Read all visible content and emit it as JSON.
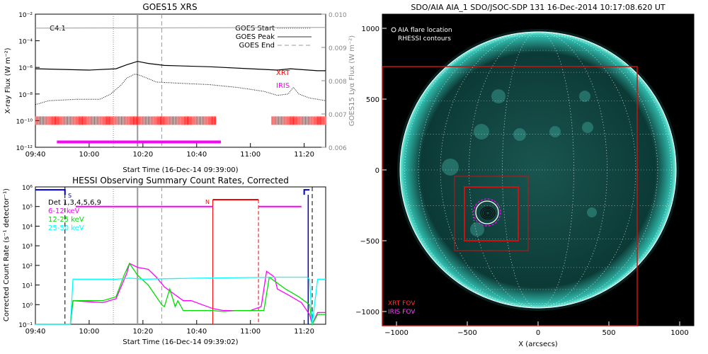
{
  "colors": {
    "xrt": "#ff0000",
    "iris": "#ff00ff",
    "green": "#00dd00",
    "cyan": "#00ffff",
    "blue": "#0000cc",
    "gray": "#999999",
    "sun": "#0c3a36"
  },
  "chart_data": [
    {
      "type": "line",
      "title": "GOES15 XRS",
      "xlabel": "Start Time (16-Dec-14 09:39:00)",
      "ylabel": "X-ray Flux (W m⁻²)",
      "ylabel_right": "GOES15 Lyα Flux (W m⁻²)",
      "x_ticks": [
        "09:40",
        "10:00",
        "10:20",
        "10:40",
        "11:00",
        "11:20"
      ],
      "x_tick_min": [
        0,
        20,
        40,
        60,
        80,
        100
      ],
      "xlim": [
        0,
        108
      ],
      "y_ticks": [
        "10⁻²",
        "10⁻⁴",
        "10⁻⁶",
        "10⁻⁸",
        "10⁻¹⁰",
        "10⁻¹²"
      ],
      "ylim_log": [
        -12,
        -2
      ],
      "y_right_ticks": [
        "0.010",
        "0.009",
        "0.008",
        "0.007",
        "0.006"
      ],
      "ylim_right": [
        0.006,
        0.01
      ],
      "class_label": "C4.1",
      "legend": [
        "GOES Start",
        "GOES Peak",
        "GOES End"
      ],
      "legend_placement": "top-right",
      "annotations": [
        "XRT",
        "IRIS"
      ],
      "vlines_min": {
        "start": 29,
        "peak": 38,
        "end": 47
      },
      "series": [
        {
          "name": "",
          "style": "solid",
          "x": [
            0,
            20,
            30,
            34,
            38,
            42,
            48,
            56,
            65,
            80,
            90,
            95,
            98,
            105,
            108
          ],
          "y": [
            -6.1,
            -6.2,
            -6.1,
            -5.8,
            -5.55,
            -5.7,
            -5.85,
            -5.9,
            -5.95,
            -6.1,
            -6.2,
            -6.1,
            -6.15,
            -6.25,
            -6.25
          ]
        },
        {
          "name": "",
          "style": "dotted",
          "x": [
            0,
            5,
            15,
            24,
            28,
            32,
            34,
            37,
            39,
            45,
            55,
            65,
            75,
            85,
            90,
            94,
            96,
            98,
            102,
            108
          ],
          "y": [
            -8.8,
            -8.5,
            -8.4,
            -8.4,
            -8.0,
            -7.3,
            -6.8,
            -6.5,
            -6.6,
            -7.1,
            -7.2,
            -7.3,
            -7.5,
            -7.8,
            -8.1,
            -8.0,
            -7.5,
            -8.0,
            -8.3,
            -8.5
          ]
        },
        {
          "name": "",
          "style": "gray",
          "x": [
            0,
            108
          ],
          "y": [
            -3.05,
            -3.0
          ]
        }
      ],
      "xrt_ranges_min": [
        [
          0,
          67
        ],
        [
          88,
          108
        ]
      ],
      "iris_range_min": [
        8,
        69
      ]
    },
    {
      "type": "line",
      "title": "HESSI Observing Summary Count Rates, Corrected",
      "xlabel": "Start Time (16-Dec-14 09:39:02)",
      "ylabel": "Corrected Count Rate (s⁻¹ detector⁻¹)",
      "x_ticks": [
        "09:40",
        "10:00",
        "10:20",
        "10:40",
        "11:00",
        "11:20"
      ],
      "x_tick_min": [
        0,
        20,
        40,
        60,
        80,
        100
      ],
      "xlim": [
        0,
        108
      ],
      "y_ticks": [
        "10⁶",
        "10⁵",
        "10⁴",
        "10³",
        "10²",
        "10¹",
        "10⁰",
        "10⁻¹"
      ],
      "ylim_log": [
        -1,
        6
      ],
      "detectors": "Det 1,3,4,5,6,9",
      "flags": [
        "S",
        "N"
      ],
      "vlines_min": {
        "dotted": 29,
        "peak": 38,
        "dashed": 47
      },
      "series": [
        {
          "name": "6-12 keV",
          "color": "iris",
          "x": [
            0,
            13,
            14,
            25,
            30,
            34,
            35,
            38,
            42,
            45,
            48,
            52,
            55,
            58,
            62,
            66,
            70,
            80,
            84,
            86,
            89,
            90,
            94,
            99,
            102,
            103,
            105,
            108
          ],
          "y": [
            -1,
            -1,
            0.2,
            0.1,
            0.3,
            1.6,
            2.1,
            1.9,
            1.8,
            1.4,
            0.9,
            0.5,
            0.2,
            0.2,
            0.0,
            -0.2,
            -0.3,
            -0.3,
            -0.1,
            1.7,
            1.4,
            0.8,
            0.5,
            0.1,
            -0.5,
            -1,
            -0.4,
            -0.4
          ]
        },
        {
          "name": "12-25 keV",
          "color": "green",
          "x": [
            0,
            13,
            14,
            25,
            30,
            33,
            35,
            38,
            42,
            45,
            47,
            48,
            50,
            52,
            53,
            55,
            60,
            66,
            70,
            75,
            80,
            85,
            87,
            90,
            93,
            98,
            102,
            103,
            105,
            108
          ],
          "y": [
            -1,
            -1,
            0.2,
            0.2,
            0.4,
            1.5,
            2.1,
            1.5,
            1.0,
            0.4,
            0.0,
            -0.1,
            0.8,
            -0.1,
            0.2,
            -0.3,
            -0.3,
            -0.3,
            -0.35,
            -0.3,
            -0.3,
            -0.3,
            1.4,
            1.1,
            0.8,
            0.4,
            0.0,
            -1,
            -0.5,
            -0.5
          ]
        },
        {
          "name": "25-50 keV",
          "color": "cyan",
          "x": [
            0,
            13,
            14,
            30,
            35,
            40,
            60,
            90,
            101,
            102,
            103,
            105,
            108
          ],
          "y": [
            -1,
            -1,
            1.3,
            1.3,
            1.35,
            1.3,
            1.35,
            1.4,
            1.4,
            1.3,
            -1,
            1.3,
            1.3
          ]
        },
        {
          "name": "",
          "color": "iris",
          "x": [
            15,
            66
          ],
          "y": [
            5,
            5
          ]
        },
        {
          "name": "",
          "color": "xrt",
          "x": [
            66,
            83
          ],
          "y": [
            5.35,
            5.35
          ]
        },
        {
          "name": "",
          "color": "iris",
          "x": [
            83,
            99
          ],
          "y": [
            5,
            5
          ]
        }
      ]
    },
    {
      "type": "scatter",
      "title": "SDO/AIA AIA_1 SDO/JSOC-SDP 131 16-Dec-2014 10:17:08.620 UT",
      "xlabel": "X (arcsecs)",
      "ylabel": "",
      "x_ticks": [
        "−1000",
        "−500",
        "0",
        "500",
        "1000"
      ],
      "x_tick_vals": [
        -1000,
        -500,
        0,
        500,
        1000
      ],
      "y_ticks": [
        "1000",
        "500",
        "0",
        "−500",
        "−1000"
      ],
      "y_tick_vals": [
        1000,
        500,
        0,
        -500,
        -1000
      ],
      "xlim": [
        -1100,
        1100
      ],
      "ylim": [
        -1100,
        1100
      ],
      "legend": [
        "AIA flare location",
        "RHESSI contours"
      ],
      "fov_labels": [
        "XRT FOV",
        "IRIS FOV"
      ],
      "flare_location": [
        -360,
        -300
      ],
      "solar_radius": 975
    }
  ]
}
